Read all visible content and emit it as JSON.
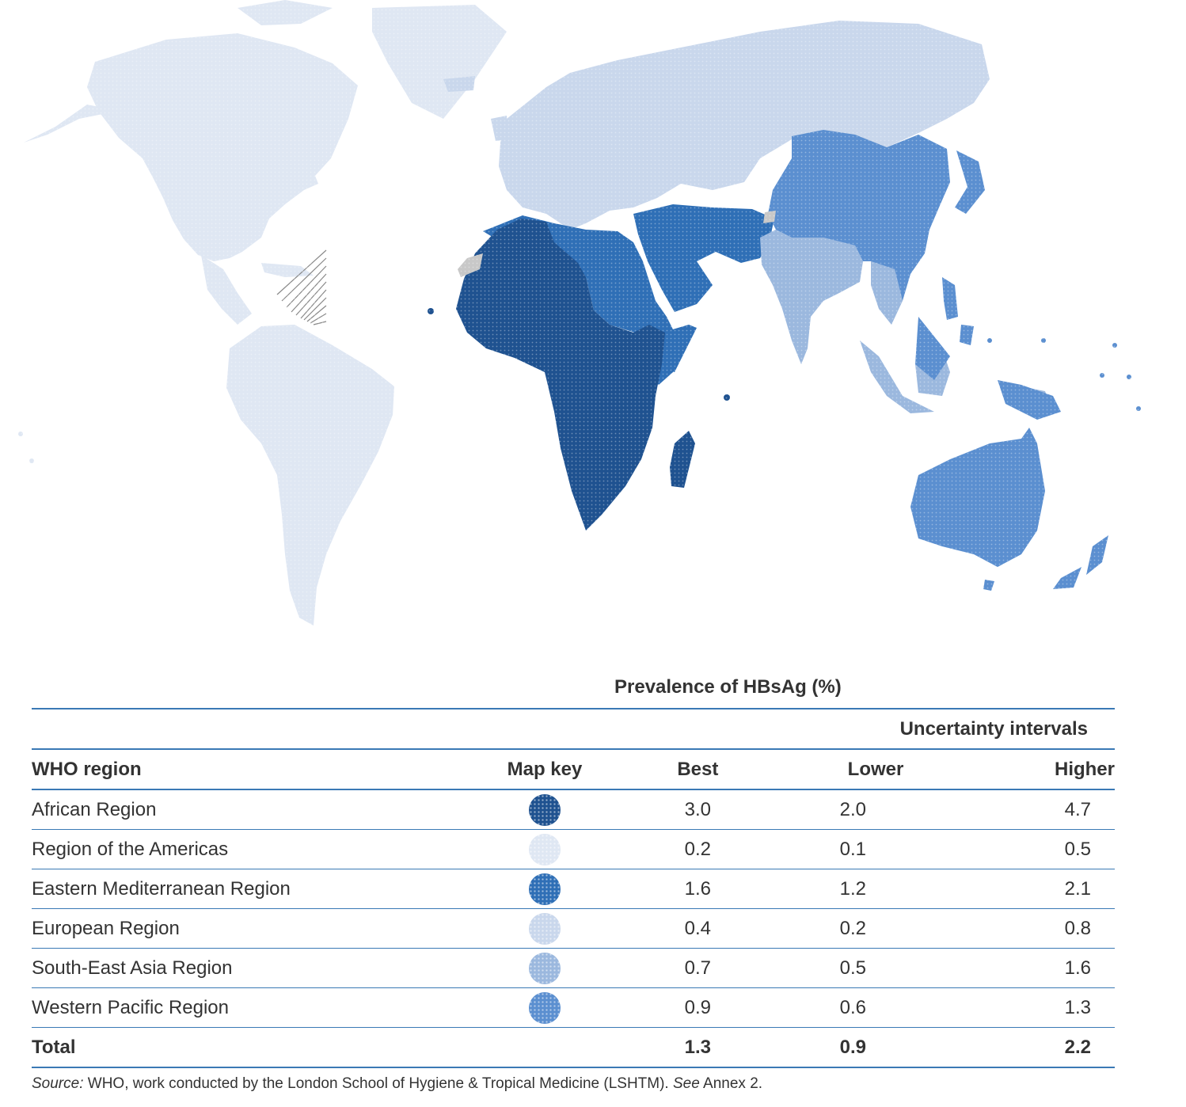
{
  "map": {
    "colors": {
      "african": "#1f5290",
      "americas": "#dfe7f3",
      "eastern_mediterranean": "#2f6fb6",
      "european": "#c9d7ec",
      "south_east_asia": "#9bb8de",
      "western_pacific": "#5b8fd0",
      "not_applicable": "#c8c8c8"
    }
  },
  "table": {
    "prevalence_header": "Prevalence of HBsAg (%)",
    "uncertainty_header": "Uncertainty intervals",
    "col_region": "WHO region",
    "col_key": "Map key",
    "col_best": "Best",
    "col_lower": "Lower",
    "col_higher": "Higher",
    "rows": [
      {
        "region": "African Region",
        "best": "3.0",
        "lower": "2.0",
        "higher": "4.7",
        "color": "#1f5290"
      },
      {
        "region": "Region of the Americas",
        "best": "0.2",
        "lower": "0.1",
        "higher": "0.5",
        "color": "#dfe7f3"
      },
      {
        "region": "Eastern Mediterranean Region",
        "best": "1.6",
        "lower": "1.2",
        "higher": "2.1",
        "color": "#2f6fb6"
      },
      {
        "region": "European Region",
        "best": "0.4",
        "lower": "0.2",
        "higher": "0.8",
        "color": "#c9d7ec"
      },
      {
        "region": "South-East Asia Region",
        "best": "0.7",
        "lower": "0.5",
        "higher": "1.6",
        "color": "#9bb8de"
      },
      {
        "region": "Western Pacific Region",
        "best": "0.9",
        "lower": "0.6",
        "higher": "1.3",
        "color": "#5b8fd0"
      }
    ],
    "total": {
      "label": "Total",
      "best": "1.3",
      "lower": "0.9",
      "higher": "2.2"
    }
  },
  "source": {
    "prefix": "Source:",
    "text": " WHO, work conducted by the London School of Hygiene & Tropical Medicine (LSHTM). ",
    "see": "See",
    "annex": " Annex 2."
  }
}
